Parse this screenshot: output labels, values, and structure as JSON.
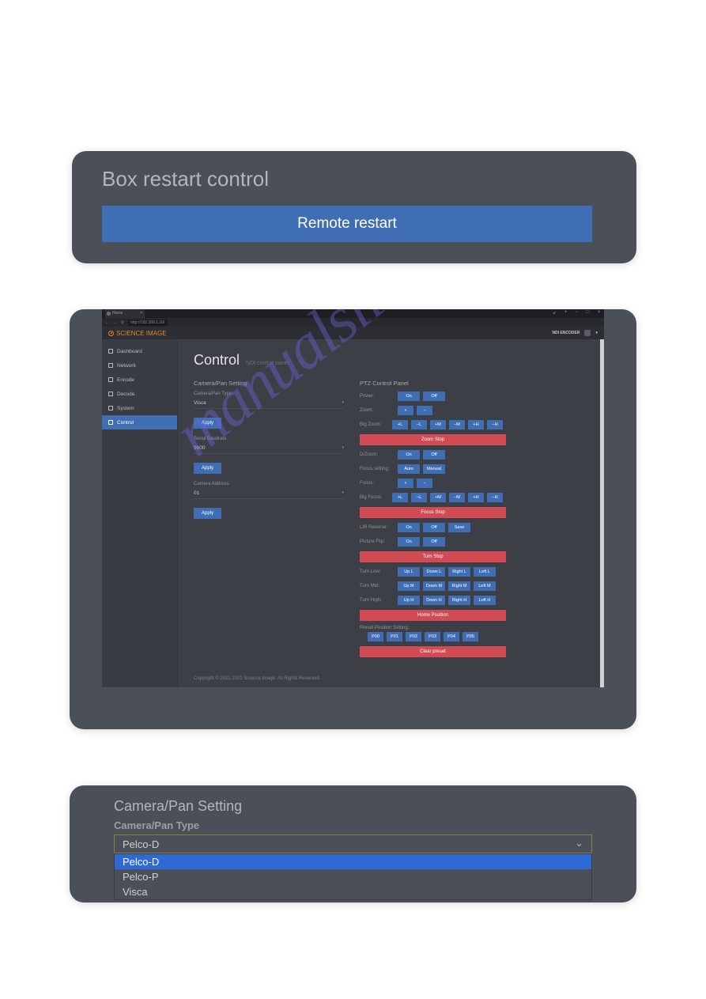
{
  "panel1": {
    "title": "Box restart control",
    "button": "Remote restart"
  },
  "panel2": {
    "browser": {
      "tab_label": "Home",
      "url": "http://192.168.1.10/",
      "window_buttons": [
        "↙",
        "+",
        "−",
        "□",
        "×"
      ]
    },
    "brand": "SCIENCE IMAGE",
    "top_right_label": "NDI ENCODER",
    "sidebar": [
      {
        "label": "Dashboard",
        "active": false
      },
      {
        "label": "Network",
        "active": false
      },
      {
        "label": "Encode",
        "active": false
      },
      {
        "label": "Decode",
        "active": false
      },
      {
        "label": "System",
        "active": false
      },
      {
        "label": "Control",
        "active": true
      }
    ],
    "page_title": "Control",
    "page_subtitle": "NDI control panel",
    "left_section_title": "Camera/Pan Setting",
    "left_fields": [
      {
        "label": "Camera/Pan Type",
        "value": "Visca",
        "apply": "Apply"
      },
      {
        "label": "Serial Baudrate",
        "value": "9600",
        "apply": "Apply"
      },
      {
        "label": "Camera Address",
        "value": "01",
        "apply": "Apply"
      }
    ],
    "right_section_title": "PTZ Control Panel",
    "ptz_rows": [
      {
        "label": "Power:",
        "buttons": [
          "On",
          "Off"
        ]
      },
      {
        "label": "Zoom:",
        "buttons": [
          "+",
          "−"
        ],
        "sm": true
      },
      {
        "label": "Big Zoom:",
        "buttons": [
          "+L",
          "−L",
          "+M",
          "−M",
          "+H",
          "−H"
        ],
        "sm": true
      }
    ],
    "red_zoom_stop": "Zoom Stop",
    "ptz_rows2": [
      {
        "label": "D/Zoom:",
        "buttons": [
          "On",
          "Off"
        ]
      },
      {
        "label": "Focus setting:",
        "buttons": [
          "Auto",
          "Manual"
        ]
      },
      {
        "label": "Focus:",
        "buttons": [
          "+",
          "−"
        ],
        "sm": true
      },
      {
        "label": "Big Focus:",
        "buttons": [
          "+L",
          "−L",
          "+M",
          "−M",
          "+H",
          "−H"
        ],
        "sm": true
      }
    ],
    "red_focus_stop": "Focus Stop",
    "ptz_rows3": [
      {
        "label": "L/R Reverse:",
        "buttons": [
          "On",
          "Off",
          "Save"
        ]
      },
      {
        "label": "Picture Flip:",
        "buttons": [
          "On",
          "Off"
        ]
      }
    ],
    "red_turn_stop": "Turn Stop",
    "ptz_rows4": [
      {
        "label": "Turn Low:",
        "buttons": [
          "Up L",
          "Down L",
          "Right L",
          "Left L"
        ]
      },
      {
        "label": "Turn Mid:",
        "buttons": [
          "Up M",
          "Down M",
          "Right M",
          "Left M"
        ]
      },
      {
        "label": "Turn High:",
        "buttons": [
          "Up H",
          "Down H",
          "Right H",
          "Left H"
        ]
      }
    ],
    "red_home": "Home Position",
    "preset_label": "Preset Position Setting:",
    "preset_buttons": [
      "P00",
      "P01",
      "P02",
      "P03",
      "P04",
      "P05"
    ],
    "red_clear": "Clear preset",
    "footer": "Copyright © 2011-2021 Science Image. All Rights Reserved.",
    "watermark": "manualslib.com"
  },
  "panel3": {
    "title": "Camera/Pan Setting",
    "label": "Camera/Pan Type",
    "selected": "Pelco-D",
    "options": [
      {
        "label": "Pelco-D",
        "selected": true
      },
      {
        "label": "Pelco-P",
        "selected": false
      },
      {
        "label": "Visca",
        "selected": false
      }
    ]
  },
  "colors": {
    "panel_bg": "#4b4f57",
    "blue_btn": "#3f6eb5",
    "red_btn": "#d24a54",
    "brand_orange": "#e58a2e",
    "dropdown_highlight": "#2f69d6",
    "select_border": "#8a7b3e"
  }
}
